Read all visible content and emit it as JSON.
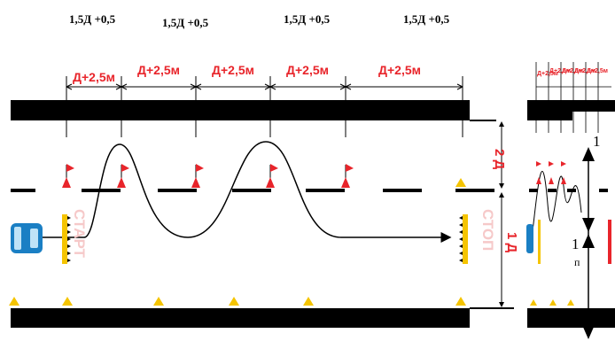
{
  "spacing_labels": [
    "1,5Д +0,5",
    "1,5Д +0,5",
    "1,5Д +0,5",
    "1,5Д +0,5"
  ],
  "segment_labels": [
    "Д+2,5м",
    "Д+2,5м",
    "Д+2,5м",
    "Д+2,5м",
    "Д+2,5м"
  ],
  "small_segment_label": "Д+2,5м",
  "start_label": "СТАРТ",
  "stop_label": "СТОП",
  "width_labels": {
    "upper": "2 Д",
    "lower": "1 Д"
  },
  "right_panel_numbers": [
    "1",
    "1"
  ],
  "right_panel_small_text": "п",
  "colors": {
    "road": "#000000",
    "dimension": "#e8252b",
    "flag": "#e8252b",
    "cone": "#f5c400",
    "car": "#1a7fc4",
    "faded_text": "#f6c9c9"
  }
}
